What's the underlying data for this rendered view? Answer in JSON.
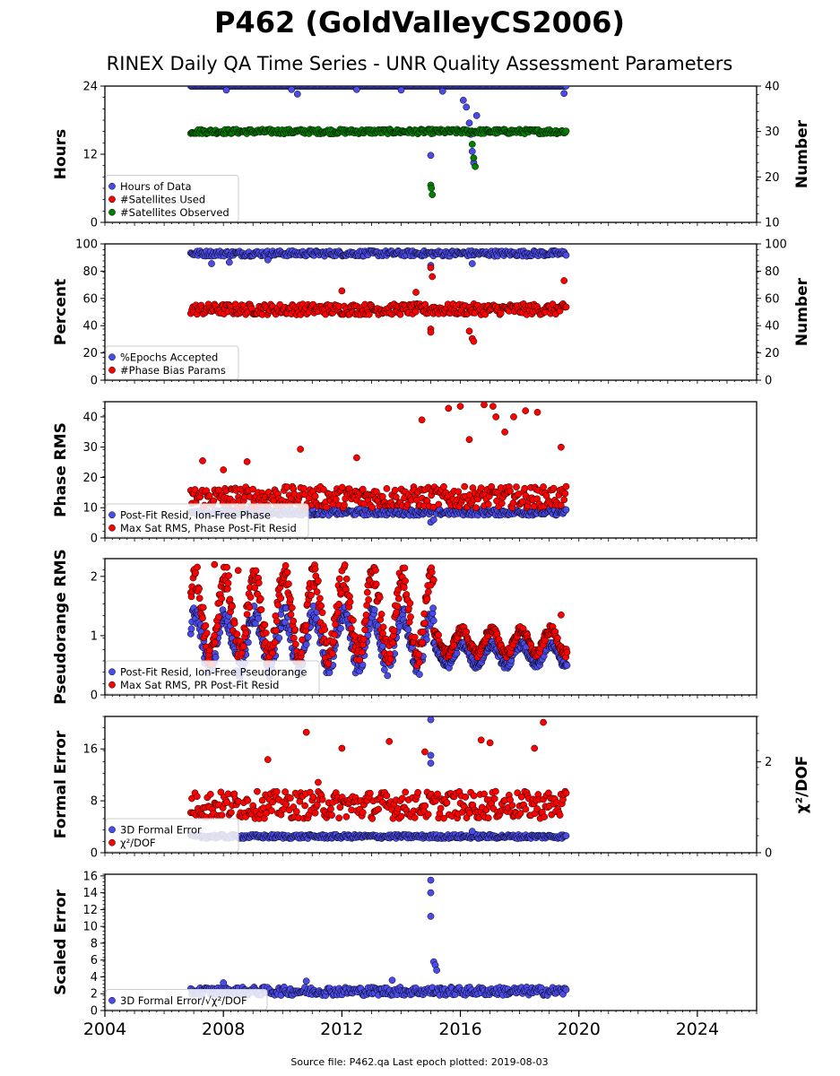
{
  "figure": {
    "title": "P462 (GoldValleyCS2006)",
    "subtitle": "RINEX Daily QA Time Series - UNR Quality Assessment Parameters",
    "footer": "Source file: P462.qa Last epoch plotted: 2019-08-03"
  },
  "colors": {
    "blue": "#4b4bea",
    "red": "#ff0000",
    "green": "#008000",
    "edge": "#000000"
  },
  "chart_data": [
    {
      "id": "hours",
      "type": "scatter",
      "ylabel": "Hours",
      "ylim": [
        0,
        24
      ],
      "yticks": [
        "0",
        "12",
        "24"
      ],
      "y2label": "Number",
      "y2lim": [
        10,
        40
      ],
      "y2ticks": [
        "10",
        "20",
        "30",
        "40"
      ],
      "xlim": [
        2004,
        2026
      ],
      "grid": false,
      "legend_position": "lower-left",
      "series": [
        {
          "name": "Hours of Data",
          "color": "blue",
          "axis": "left",
          "band": {
            "x": [
              2006.9,
              2019.6
            ],
            "y": [
              24,
              24
            ]
          },
          "points": [
            [
              2008.1,
              23.3
            ],
            [
              2010.3,
              23.4
            ],
            [
              2010.5,
              22.6
            ],
            [
              2012.5,
              23.4
            ],
            [
              2014.0,
              23.3
            ],
            [
              2015.0,
              11.8
            ],
            [
              2015.4,
              23.1
            ],
            [
              2016.1,
              21.5
            ],
            [
              2016.2,
              20.3
            ],
            [
              2016.3,
              17.5
            ],
            [
              2016.35,
              15.5
            ],
            [
              2016.4,
              12.5
            ],
            [
              2016.45,
              10.5
            ],
            [
              2016.55,
              18.8
            ],
            [
              2019.5,
              22.7
            ]
          ]
        },
        {
          "name": "#Satellites Used",
          "color": "red",
          "axis": "right",
          "points": [
            [
              2009.6,
              30.3
            ]
          ]
        },
        {
          "name": "#Satellites Observed",
          "color": "green",
          "axis": "right",
          "band": {
            "x": [
              2006.9,
              2019.6
            ],
            "y": [
              29.5,
              30.5
            ]
          },
          "points": [
            [
              2015.0,
              18.2
            ],
            [
              2015.02,
              17.5
            ],
            [
              2015.05,
              16.1
            ],
            [
              2016.4,
              27.2
            ],
            [
              2016.45,
              24.2
            ],
            [
              2016.5,
              22.3
            ]
          ]
        }
      ]
    },
    {
      "id": "percent",
      "type": "scatter",
      "ylabel": "Percent",
      "ylim": [
        0,
        100
      ],
      "yticks": [
        "0",
        "20",
        "40",
        "60",
        "80",
        "100"
      ],
      "y2label": "Number",
      "y2lim": [
        0,
        100
      ],
      "y2ticks": [
        "0",
        "20",
        "40",
        "60",
        "80",
        "100"
      ],
      "xlim": [
        2004,
        2026
      ],
      "grid": false,
      "legend_position": "lower-left",
      "series": [
        {
          "name": "%Epochs Accepted",
          "color": "blue",
          "axis": "left",
          "band": {
            "x": [
              2006.9,
              2019.6
            ],
            "y": [
              91,
              95
            ]
          },
          "points": [
            [
              2007.6,
              85.5
            ],
            [
              2008.2,
              86.5
            ],
            [
              2009.5,
              88.3
            ],
            [
              2015.0,
              84.2
            ],
            [
              2016.4,
              85.5
            ]
          ]
        },
        {
          "name": "#Phase Bias Params",
          "color": "red",
          "axis": "left",
          "band": {
            "x": [
              2006.9,
              2019.6
            ],
            "y": [
              48,
              56
            ]
          },
          "points": [
            [
              2015.0,
              82.5
            ],
            [
              2015.05,
              76.0
            ],
            [
              2015.0,
              37.5
            ],
            [
              2015.0,
              35.2
            ],
            [
              2016.4,
              30.5
            ],
            [
              2016.45,
              28.5
            ],
            [
              2016.3,
              36.0
            ],
            [
              2019.5,
              73.0
            ],
            [
              2012.0,
              65.5
            ],
            [
              2014.5,
              64.5
            ]
          ]
        }
      ]
    },
    {
      "id": "phase-rms",
      "type": "scatter",
      "ylabel": "Phase RMS",
      "ylim": [
        0,
        45
      ],
      "yticks": [
        "0",
        "10",
        "20",
        "30",
        "40"
      ],
      "xlim": [
        2004,
        2026
      ],
      "grid": false,
      "legend_position": "lower-left",
      "series": [
        {
          "name": "Post-Fit Resid, Ion-Free Phase",
          "color": "blue",
          "axis": "left",
          "band": {
            "x": [
              2006.9,
              2019.6
            ],
            "y": [
              7.5,
              9.5
            ]
          },
          "points": [
            [
              2015.0,
              5.2
            ],
            [
              2015.1,
              6.0
            ]
          ]
        },
        {
          "name": "Max Sat RMS, Phase Post-Fit Resid",
          "color": "red",
          "axis": "left",
          "band": {
            "x": [
              2006.9,
              2019.6
            ],
            "y": [
              10,
              17
            ]
          },
          "points": [
            [
              2007.3,
              25.5
            ],
            [
              2008.0,
              22.5
            ],
            [
              2008.8,
              25.2
            ],
            [
              2010.6,
              29.3
            ],
            [
              2012.5,
              26.5
            ],
            [
              2014.7,
              39.0
            ],
            [
              2015.6,
              42.8
            ],
            [
              2016.0,
              43.5
            ],
            [
              2016.3,
              32.5
            ],
            [
              2016.8,
              44.0
            ],
            [
              2017.2,
              40.0
            ],
            [
              2017.5,
              35.0
            ],
            [
              2017.1,
              43.5
            ],
            [
              2017.8,
              40.0
            ],
            [
              2018.2,
              42.0
            ],
            [
              2018.6,
              41.5
            ],
            [
              2019.4,
              30.0
            ]
          ]
        }
      ]
    },
    {
      "id": "pseudorange-rms",
      "type": "scatter",
      "ylabel": "Pseudorange RMS",
      "ylim": [
        0,
        2.3
      ],
      "yticks": [
        "0",
        "1",
        "2"
      ],
      "xlim": [
        2004,
        2026
      ],
      "grid": false,
      "legend_position": "lower-left",
      "series": [
        {
          "name": "Post-Fit Resid, Ion-Free Pseudorange",
          "color": "blue",
          "axis": "left",
          "seasonal": {
            "x": [
              2006.9,
              2015.1
            ],
            "low": 0.45,
            "high": 1.35,
            "x2": [
              2015.1,
              2019.6
            ],
            "low2": 0.5,
            "high2": 0.85
          }
        },
        {
          "name": "Max Sat RMS, PR Post-Fit Resid",
          "color": "red",
          "axis": "left",
          "seasonal": {
            "x": [
              2006.9,
              2015.1
            ],
            "low": 0.7,
            "high": 2.0,
            "x2": [
              2015.1,
              2019.6
            ],
            "low2": 0.7,
            "high2": 1.1
          },
          "points": [
            [
              2007.7,
              2.2
            ],
            [
              2008.5,
              2.1
            ],
            [
              2015.0,
              1.85
            ],
            [
              2019.4,
              1.35
            ]
          ]
        }
      ]
    },
    {
      "id": "formal-error",
      "type": "scatter",
      "ylabel": "Formal Error",
      "ylim": [
        0,
        21
      ],
      "yticks": [
        "0",
        "8",
        "16"
      ],
      "y2label": "χ²/DOF",
      "y2lim": [
        0,
        3
      ],
      "y2ticks": [
        "0",
        "2"
      ],
      "xlim": [
        2004,
        2026
      ],
      "grid": false,
      "legend_position": "lower-left",
      "series": [
        {
          "name": "3D Formal Error",
          "color": "blue",
          "axis": "left",
          "band": {
            "x": [
              2006.9,
              2019.6
            ],
            "y": [
              2.2,
              2.8
            ]
          },
          "points": [
            [
              2015.0,
              20.5
            ],
            [
              2015.0,
              15.0
            ],
            [
              2015.0,
              13.8
            ],
            [
              2016.4,
              3.3
            ]
          ]
        },
        {
          "name": "χ²/DOF",
          "color": "red",
          "axis": "right",
          "band": {
            "x": [
              2006.9,
              2019.6
            ],
            "y": [
              0.75,
              1.35
            ]
          },
          "points": [
            [
              2010.8,
              2.65
            ],
            [
              2012.0,
              2.3
            ],
            [
              2013.6,
              2.45
            ],
            [
              2014.8,
              2.22
            ],
            [
              2016.7,
              2.48
            ],
            [
              2018.5,
              2.3
            ],
            [
              2018.8,
              2.87
            ],
            [
              2017.0,
              2.42
            ],
            [
              2011.2,
              1.55
            ],
            [
              2009.5,
              2.05
            ]
          ]
        }
      ]
    },
    {
      "id": "scaled-error",
      "type": "scatter",
      "ylabel": "Scaled Error",
      "ylim": [
        0,
        16.2
      ],
      "yticks": [
        "0",
        "2",
        "4",
        "6",
        "8",
        "10",
        "12",
        "14",
        "16"
      ],
      "xlim": [
        2004,
        2026
      ],
      "grid": false,
      "legend_position": "lower-left",
      "series": [
        {
          "name": "3D Formal Error/√χ²/DOF",
          "color": "blue",
          "axis": "left",
          "band": {
            "x": [
              2006.9,
              2019.6
            ],
            "y": [
              1.8,
              2.8
            ]
          },
          "points": [
            [
              2015.0,
              15.5
            ],
            [
              2015.0,
              14.0
            ],
            [
              2015.0,
              11.2
            ],
            [
              2015.1,
              5.8
            ],
            [
              2015.15,
              5.4
            ],
            [
              2015.2,
              4.8
            ],
            [
              2013.7,
              3.6
            ],
            [
              2010.8,
              3.5
            ],
            [
              2008.0,
              3.3
            ]
          ]
        }
      ]
    }
  ],
  "xaxis": {
    "ticks": [
      "2004",
      "2008",
      "2012",
      "2016",
      "2020",
      "2024"
    ]
  }
}
